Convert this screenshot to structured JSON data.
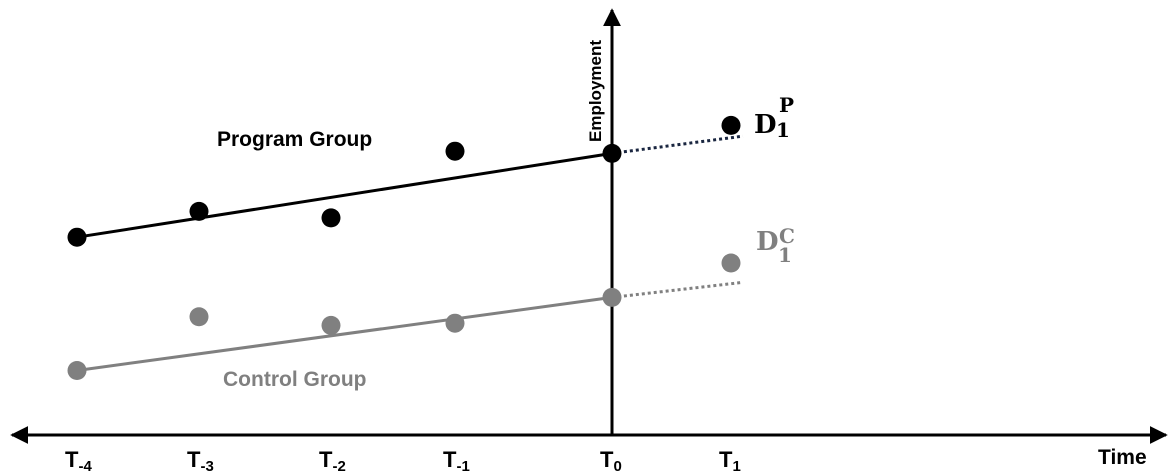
{
  "chart_data": {
    "type": "scatter",
    "xlabel": "Time",
    "ylabel": "Employment",
    "x_ticks": [
      {
        "base": "T",
        "sub": "-4"
      },
      {
        "base": "T",
        "sub": "-3"
      },
      {
        "base": "T",
        "sub": "-2"
      },
      {
        "base": "T",
        "sub": "-1"
      },
      {
        "base": "T",
        "sub": "0"
      },
      {
        "base": "T",
        "sub": "1"
      }
    ],
    "series": [
      {
        "name": "Program Group",
        "color": "#000000",
        "points": [
          {
            "t": -4,
            "y": 4.6
          },
          {
            "t": -3,
            "y": 5.2
          },
          {
            "t": -2,
            "y": 5.05
          },
          {
            "t": -1,
            "y": 6.6
          },
          {
            "t": 0,
            "y": 6.55
          },
          {
            "t": 1,
            "y": 7.2
          }
        ],
        "trend_start": {
          "t": -4,
          "y": 4.6
        },
        "trend_end": {
          "t": 0,
          "y": 6.55
        },
        "projection_end": {
          "t": 1.1,
          "y": 6.95
        },
        "projection_label": {
          "base": "D",
          "sub": "1",
          "sup": "P"
        }
      },
      {
        "name": "Control Group",
        "color": "#808080",
        "points": [
          {
            "t": -4,
            "y": 1.5
          },
          {
            "t": -3,
            "y": 2.75
          },
          {
            "t": -2,
            "y": 2.55
          },
          {
            "t": -1,
            "y": 2.6
          },
          {
            "t": 0,
            "y": 3.2
          },
          {
            "t": 1,
            "y": 4.0
          }
        ],
        "trend_start": {
          "t": -4,
          "y": 1.5
        },
        "trend_end": {
          "t": 0,
          "y": 3.2
        },
        "projection_end": {
          "t": 1.1,
          "y": 3.55
        },
        "projection_label": {
          "base": "D",
          "sub": "1",
          "sup": "C"
        }
      }
    ]
  }
}
